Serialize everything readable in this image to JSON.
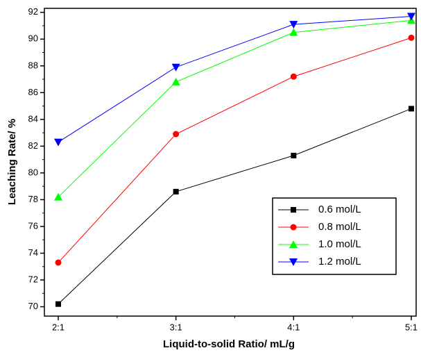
{
  "chart_data": {
    "type": "line",
    "x_label": "Liquid-to-solid Ratio/ mL/g",
    "y_label": "Leaching Rate/ %",
    "categories": [
      "2:1",
      "3:1",
      "4:1",
      "5:1"
    ],
    "series": [
      {
        "name": "0.6 mol/L",
        "color": "#000000",
        "marker": "square",
        "values": [
          70.2,
          78.6,
          81.3,
          84.8
        ]
      },
      {
        "name": "0.8 mol/L",
        "color": "#ff0000",
        "marker": "circle",
        "values": [
          73.3,
          82.9,
          87.2,
          90.1
        ]
      },
      {
        "name": "1.0 mol/L",
        "color": "#00ff00",
        "marker": "triangle-up",
        "values": [
          78.2,
          86.8,
          90.5,
          91.4
        ]
      },
      {
        "name": "1.2 mol/L",
        "color": "#0000ff",
        "marker": "triangle-down",
        "values": [
          82.3,
          87.9,
          91.1,
          91.7
        ]
      }
    ],
    "ylim": [
      69.3,
      92.3
    ],
    "yticks": [
      70,
      72,
      74,
      76,
      78,
      80,
      82,
      84,
      86,
      88,
      90,
      92
    ],
    "legend": "lower-right"
  }
}
